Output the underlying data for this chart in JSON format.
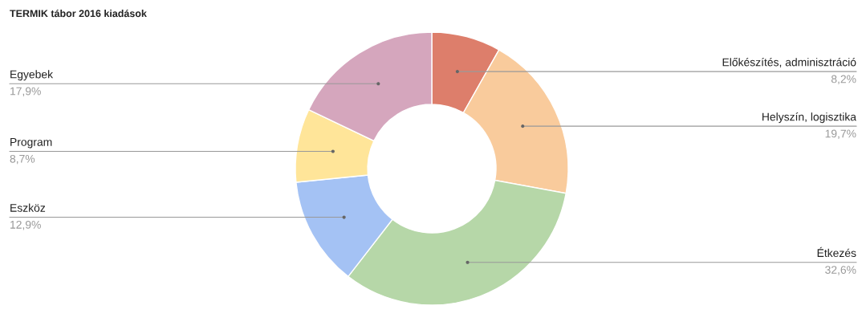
{
  "chart_data": {
    "type": "donut",
    "title": "TERMIK tábor 2016 kiadások",
    "categories": [
      "Előkészítés, adminisztráció",
      "Helyszín, logisztika",
      "Étkezés",
      "Eszköz",
      "Program",
      "Egyebek"
    ],
    "values": [
      8.2,
      19.7,
      32.6,
      12.9,
      8.7,
      17.9
    ],
    "value_labels": [
      "8,2%",
      "19,7%",
      "32,6%",
      "12,9%",
      "8,7%",
      "17,9%"
    ],
    "colors": [
      "#dd7e6b",
      "#f9cb9c",
      "#b6d7a8",
      "#a4c2f4",
      "#ffe599",
      "#d5a6bd"
    ]
  }
}
